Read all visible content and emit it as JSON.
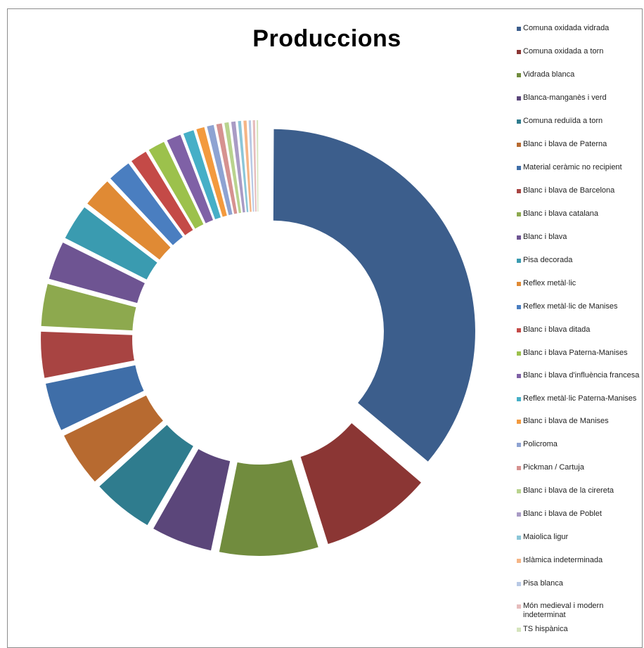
{
  "chart_data": {
    "type": "pie",
    "variant": "donut-exploded",
    "title": "Produccions",
    "legend_position": "right",
    "series": [
      {
        "name": "Comuna oxidada vidrada",
        "value": 36.0,
        "color": "#3C5E8C"
      },
      {
        "name": "Comuna oxidada a torn",
        "value": 9.0,
        "color": "#8B3634"
      },
      {
        "name": "Vidrada blanca",
        "value": 8.0,
        "color": "#718C3E"
      },
      {
        "name": "Blanca-manganès i verd",
        "value": 5.0,
        "color": "#5B467A"
      },
      {
        "name": "Comuna reduïda a torn",
        "value": 5.0,
        "color": "#2F7C8E"
      },
      {
        "name": "Blanc i blava de Paterna",
        "value": 4.5,
        "color": "#B76A30"
      },
      {
        "name": "Material ceràmic no recipient",
        "value": 4.0,
        "color": "#3F6EA8"
      },
      {
        "name": "Blanc i blava de Barcelona",
        "value": 3.8,
        "color": "#A84442"
      },
      {
        "name": "Blanc i blava catalana",
        "value": 3.5,
        "color": "#8DA94E"
      },
      {
        "name": "Blanc i blava",
        "value": 3.2,
        "color": "#6E5492"
      },
      {
        "name": "Pisa decorada",
        "value": 3.0,
        "color": "#3A9BB0"
      },
      {
        "name": "Reflex metàl·lic",
        "value": 2.5,
        "color": "#E08A34"
      },
      {
        "name": "Reflex metàl·lic de Manises",
        "value": 2.0,
        "color": "#4A7EC0"
      },
      {
        "name": "Blanc i blava ditada",
        "value": 1.5,
        "color": "#C44A47"
      },
      {
        "name": "Blanc i blava Paterna-Manises",
        "value": 1.5,
        "color": "#9CC14C"
      },
      {
        "name": "Blanc i blava d'influència francesa",
        "value": 1.3,
        "color": "#7F61A6"
      },
      {
        "name": "Reflex metàl·lic Paterna-Manises",
        "value": 1.0,
        "color": "#46AFC7"
      },
      {
        "name": "Blanc i blava de Manises",
        "value": 0.8,
        "color": "#F39A3E"
      },
      {
        "name": "Policroma",
        "value": 0.7,
        "color": "#8EA3D2"
      },
      {
        "name": "Pickman / Cartuja",
        "value": 0.6,
        "color": "#D69290"
      },
      {
        "name": "Blanc i blava de la cirereta",
        "value": 0.5,
        "color": "#B9D38E"
      },
      {
        "name": "Blanc i blava de Poblet",
        "value": 0.5,
        "color": "#A99BC5"
      },
      {
        "name": "Maiolica ligur",
        "value": 0.4,
        "color": "#8BC6D8"
      },
      {
        "name": "Islàmica indeterminada",
        "value": 0.4,
        "color": "#F5B586"
      },
      {
        "name": "Pisa blanca",
        "value": 0.3,
        "color": "#B8C9E5"
      },
      {
        "name": "Món medieval i modern indeterminat",
        "value": 0.3,
        "color": "#E6BDBD"
      },
      {
        "name": "TS hispànica",
        "value": 0.2,
        "color": "#D5E4BD"
      }
    ]
  },
  "legend_labels": [
    "Comuna oxidada vidrada",
    "Comuna oxidada a torn",
    "Vidrada blanca",
    "Blanca-manganès i verd",
    "Comuna reduïda a torn",
    "Blanc i blava de Paterna",
    "Material ceràmic no recipient",
    "Blanc i blava de Barcelona",
    "Blanc i blava catalana",
    "Blanc i blava",
    "Pisa decorada",
    "Reflex metàl·lic",
    "Reflex metàl·lic de Manises",
    "Blanc i blava ditada",
    "Blanc i blava Paterna-Manises",
    "Blanc i blava d'influència francesa",
    "Reflex metàl·lic Paterna-Manises",
    "Blanc i blava de Manises",
    "Policroma",
    "Pickman / Cartuja",
    "Blanc i blava de la cirereta",
    "Blanc i blava de Poblet",
    "Maiolica ligur",
    "Islàmica indeterminada",
    "Pisa blanca",
    "Món medieval i modern indeterminat",
    "TS hispànica"
  ]
}
